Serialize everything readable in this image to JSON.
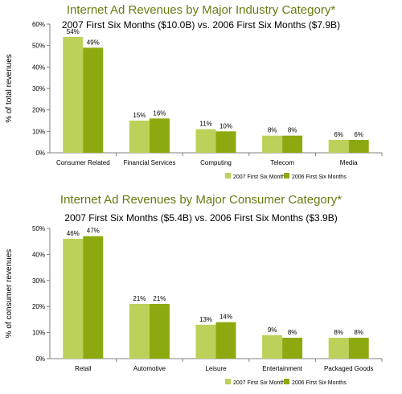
{
  "chart_data": [
    {
      "type": "bar",
      "title": "Internet Ad Revenues by Major Industry Category*",
      "subtitle": "2007 First Six Months ($10.0B) vs. 2006 First Six Months ($7.9B)",
      "xlabel": "",
      "ylabel": "% of total revenues",
      "ylim": [
        0,
        60
      ],
      "yticks": [
        "0%",
        "10%",
        "20%",
        "30%",
        "40%",
        "50%",
        "60%"
      ],
      "categories": [
        "Consumer Related",
        "Financial Services",
        "Computing",
        "Telecom",
        "Media"
      ],
      "series": [
        {
          "name": "2007 First Six Months",
          "values": [
            54,
            15,
            11,
            8,
            6
          ],
          "labels": [
            "54%",
            "15%",
            "11%",
            "8%",
            "6%"
          ],
          "color": "#bcd15a"
        },
        {
          "name": "2006 First Six Months",
          "values": [
            49,
            16,
            10,
            8,
            6
          ],
          "labels": [
            "49%",
            "16%",
            "10%",
            "8%",
            "6%"
          ],
          "color": "#8caa0f"
        }
      ],
      "legend_position": "bottom-right",
      "grid": false
    },
    {
      "type": "bar",
      "title": "Internet Ad Revenues by Major Consumer Category*",
      "subtitle": "2007 First Six Months ($5.4B) vs. 2006 First Six Months ($3.9B)",
      "xlabel": "",
      "ylabel": "% of consumer revenues",
      "ylim": [
        0,
        50
      ],
      "yticks": [
        "0%",
        "10%",
        "20%",
        "30%",
        "40%",
        "50%"
      ],
      "categories": [
        "Retail",
        "Automotive",
        "Leisure",
        "Entertainment",
        "Packaged Goods"
      ],
      "series": [
        {
          "name": "2007 First Six Months",
          "values": [
            46,
            21,
            13,
            9,
            8
          ],
          "labels": [
            "46%",
            "21%",
            "13%",
            "9%",
            "8%"
          ],
          "color": "#bcd15a"
        },
        {
          "name": "2006 First Six Months",
          "values": [
            47,
            21,
            14,
            8,
            8
          ],
          "labels": [
            "47%",
            "21%",
            "14%",
            "8%",
            "8%"
          ],
          "color": "#8caa0f"
        }
      ],
      "legend_position": "bottom-right",
      "grid": false
    }
  ]
}
